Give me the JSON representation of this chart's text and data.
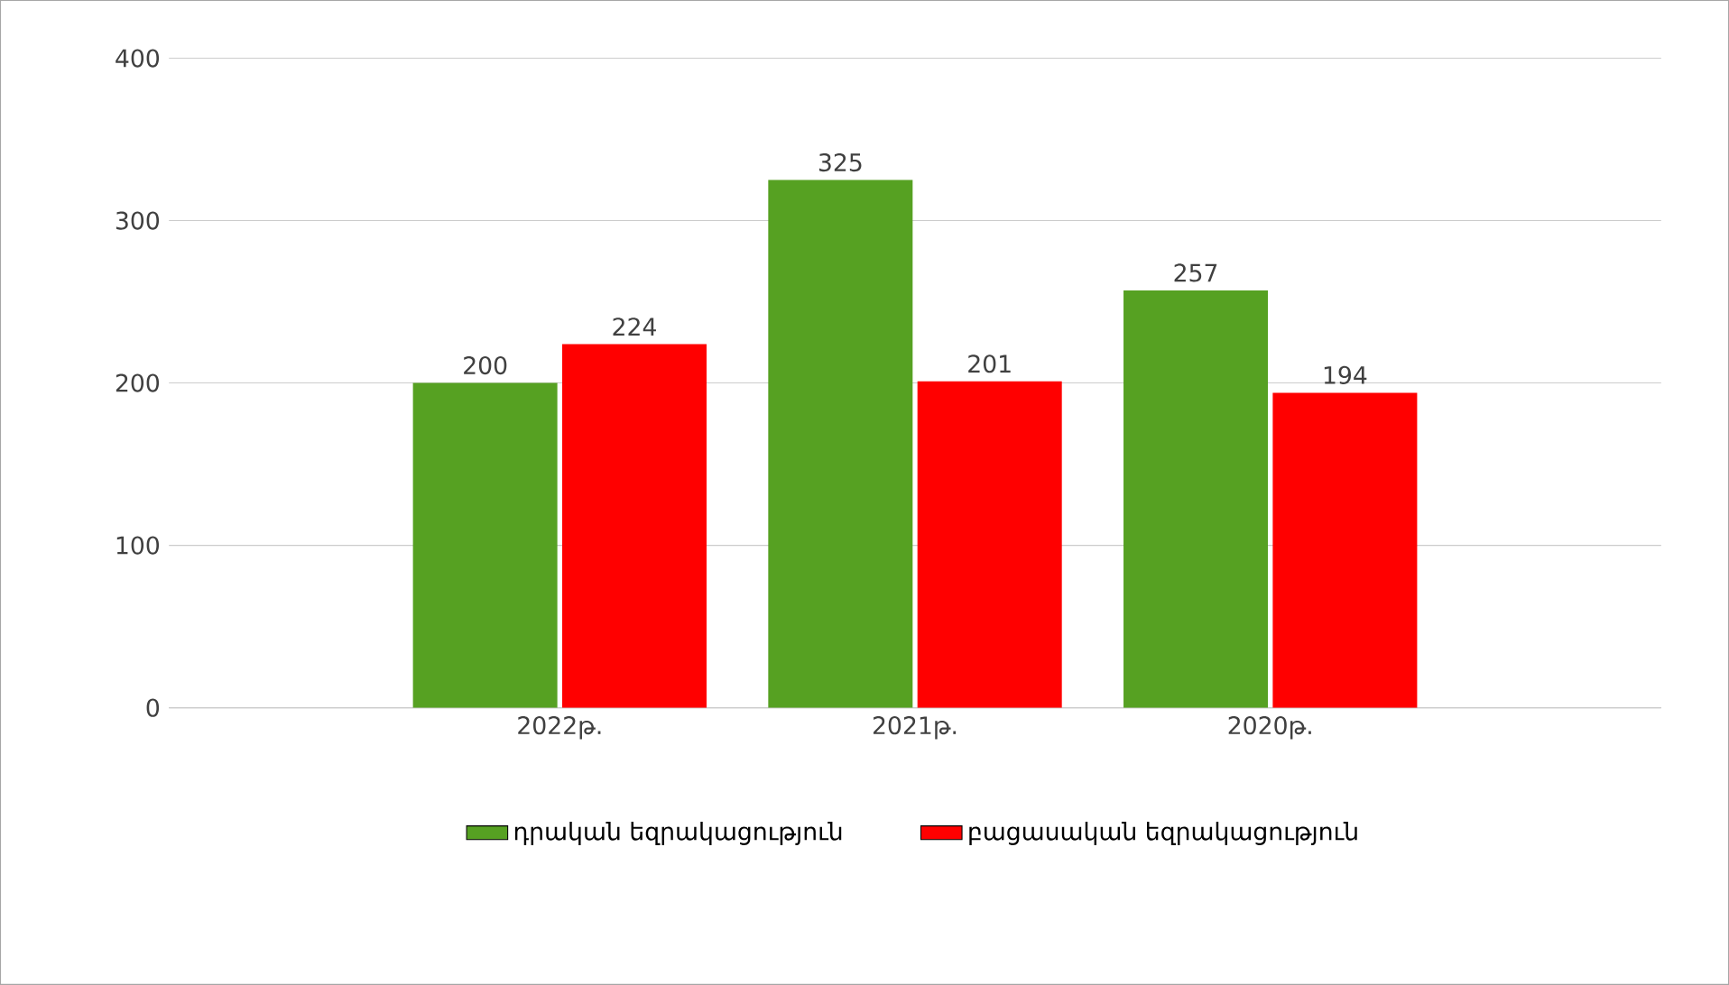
{
  "chart_data": {
    "type": "bar",
    "categories": [
      "2022թ.",
      "2021թ.",
      "2020թ."
    ],
    "series": [
      {
        "name": "դրական եզրակացություն",
        "color": "#56a122",
        "values": [
          200,
          325,
          257
        ]
      },
      {
        "name": "բացասական եզրակացություն",
        "color": "#ff0000",
        "values": [
          224,
          201,
          194
        ]
      }
    ],
    "ylim": [
      0,
      400
    ],
    "yticks": [
      0,
      100,
      200,
      300,
      400
    ],
    "grid": "y",
    "data_labels": true,
    "legend": "bottom"
  }
}
